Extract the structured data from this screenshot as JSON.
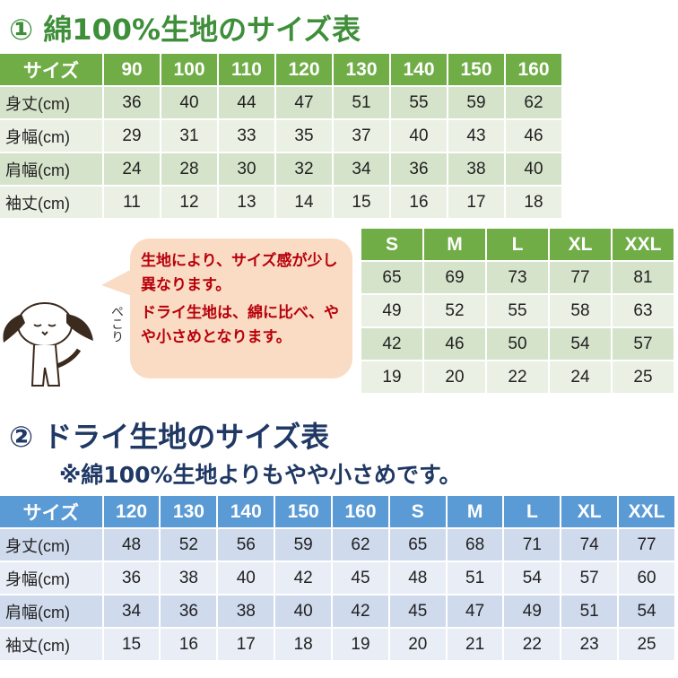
{
  "title1": "① 綿100%生地のサイズ表",
  "title2": "② ドライ生地のサイズ表",
  "note": "※綿100%生地よりもやや小さめです。",
  "bubble": {
    "line1": "生地により、サイズ感が少し異なります。",
    "line2": "ドライ生地は、綿に比べ、やや小さめとなります。"
  },
  "peko": "ぺこり",
  "colors": {
    "green_header": "#70ad47",
    "blue_header": "#5b9bd5",
    "bubble_text": "#b8000b",
    "bubble_bg": "#f9dcc3"
  },
  "cotton_kids": {
    "headers": [
      "サイズ",
      "90",
      "100",
      "110",
      "120",
      "130",
      "140",
      "150",
      "160"
    ],
    "rows": [
      [
        "身丈(cm)",
        "36",
        "40",
        "44",
        "47",
        "51",
        "55",
        "59",
        "62"
      ],
      [
        "身幅(cm)",
        "29",
        "31",
        "33",
        "35",
        "37",
        "40",
        "43",
        "46"
      ],
      [
        "肩幅(cm)",
        "24",
        "28",
        "30",
        "32",
        "34",
        "36",
        "38",
        "40"
      ],
      [
        "袖丈(cm)",
        "11",
        "12",
        "13",
        "14",
        "15",
        "16",
        "17",
        "18"
      ]
    ]
  },
  "cotton_adult": {
    "headers": [
      "S",
      "M",
      "L",
      "XL",
      "XXL"
    ],
    "rows": [
      [
        "65",
        "69",
        "73",
        "77",
        "81"
      ],
      [
        "49",
        "52",
        "55",
        "58",
        "63"
      ],
      [
        "42",
        "46",
        "50",
        "54",
        "57"
      ],
      [
        "19",
        "20",
        "22",
        "24",
        "25"
      ]
    ]
  },
  "dry": {
    "headers": [
      "サイズ",
      "120",
      "130",
      "140",
      "150",
      "160",
      "S",
      "M",
      "L",
      "XL",
      "XXL"
    ],
    "rows": [
      [
        "身丈(cm)",
        "48",
        "52",
        "56",
        "59",
        "62",
        "65",
        "68",
        "71",
        "74",
        "77"
      ],
      [
        "身幅(cm)",
        "36",
        "38",
        "40",
        "42",
        "45",
        "48",
        "51",
        "54",
        "57",
        "60"
      ],
      [
        "肩幅(cm)",
        "34",
        "36",
        "38",
        "40",
        "42",
        "45",
        "47",
        "49",
        "51",
        "54"
      ],
      [
        "袖丈(cm)",
        "15",
        "16",
        "17",
        "18",
        "19",
        "20",
        "21",
        "22",
        "23",
        "25"
      ]
    ]
  }
}
